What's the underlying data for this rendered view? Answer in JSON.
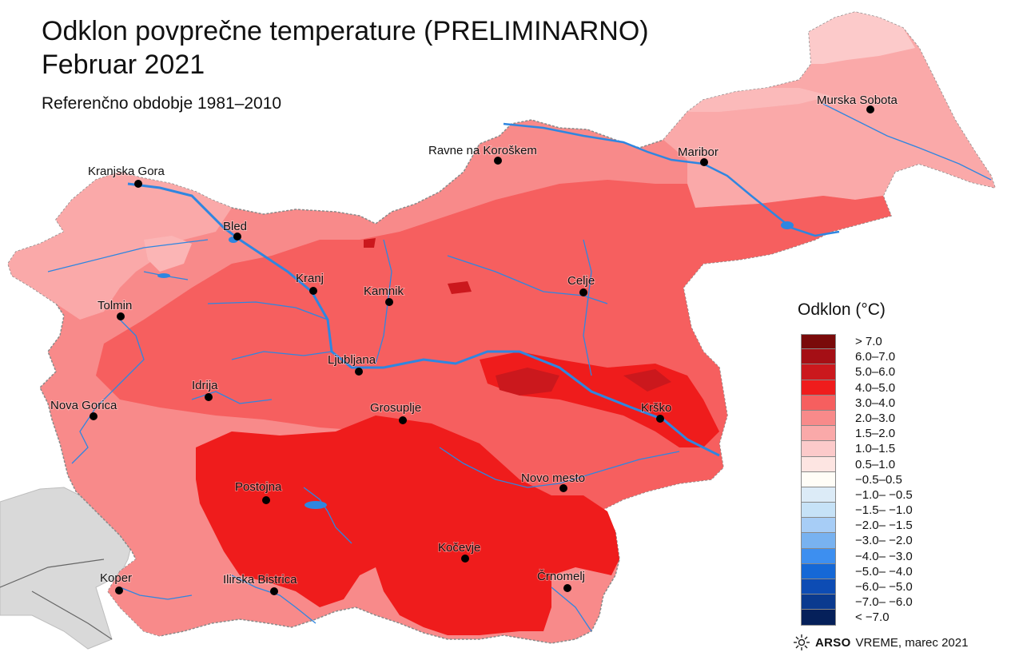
{
  "title": {
    "line1": "Odklon povprečne temperature (PRELIMINARNO)",
    "line2": "Februar 2021"
  },
  "subtitle": "Referenčno obdobje 1981–2010",
  "cities": [
    {
      "name": "Murska Sobota"
    },
    {
      "name": "Ravne na Koroškem"
    },
    {
      "name": "Maribor"
    },
    {
      "name": "Kranjska Gora"
    },
    {
      "name": "Bled"
    },
    {
      "name": "Kranj"
    },
    {
      "name": "Kamnik"
    },
    {
      "name": "Celje"
    },
    {
      "name": "Tolmin"
    },
    {
      "name": "Ljubljana"
    },
    {
      "name": "Idrija"
    },
    {
      "name": "Nova Gorica"
    },
    {
      "name": "Grosuplje"
    },
    {
      "name": "Krško"
    },
    {
      "name": "Postojna"
    },
    {
      "name": "Novo mesto"
    },
    {
      "name": "Kočevje"
    },
    {
      "name": "Koper"
    },
    {
      "name": "Ilirska Bistrica"
    },
    {
      "name": "Črnomelj"
    }
  ],
  "legend": {
    "title": "Odklon (°C)",
    "classes": [
      {
        "label": "> 7.0",
        "color": "#7a0a0a"
      },
      {
        "label": "6.0–7.0",
        "color": "#a50f15"
      },
      {
        "label": "5.0–6.0",
        "color": "#cb181d"
      },
      {
        "label": "4.0–5.0",
        "color": "#ef1c1c"
      },
      {
        "label": "3.0–4.0",
        "color": "#f65f5f"
      },
      {
        "label": "2.0–3.0",
        "color": "#f88a8a"
      },
      {
        "label": "1.5–2.0",
        "color": "#faa9a9"
      },
      {
        "label": "1.0–1.5",
        "color": "#fccaca"
      },
      {
        "label": "0.5–1.0",
        "color": "#fde5e2"
      },
      {
        "label": "−0.5–0.5",
        "color": "#fffdf7"
      },
      {
        "label": "−1.0– −0.5",
        "color": "#dcebf7"
      },
      {
        "label": "−1.5– −1.0",
        "color": "#c6e2f7"
      },
      {
        "label": "−2.0– −1.5",
        "color": "#a7cdf6"
      },
      {
        "label": "−3.0– −2.0",
        "color": "#78b2f0"
      },
      {
        "label": "−4.0– −3.0",
        "color": "#3d8ff0"
      },
      {
        "label": "−5.0– −4.0",
        "color": "#1568d6"
      },
      {
        "label": "−6.0– −5.0",
        "color": "#0d4cb4"
      },
      {
        "label": "−7.0– −6.0",
        "color": "#0a3a8f"
      },
      {
        "label": "< −7.0",
        "color": "#05205a"
      }
    ]
  },
  "footer": {
    "brand": "ARSO",
    "service": "VREME",
    "date": ", marec 2021"
  },
  "colors": {
    "river": "#2f86e0",
    "neighbor": "#d9d9d9"
  }
}
